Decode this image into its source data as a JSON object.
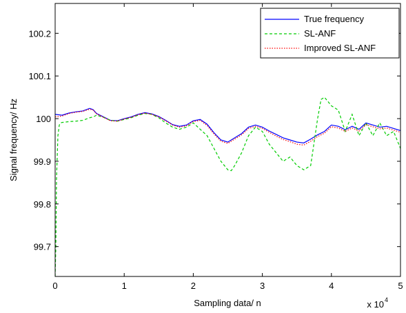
{
  "chart_data": {
    "type": "line",
    "xlabel": "Sampling data/ n",
    "ylabel": "Signal frequency/ Hz",
    "x_exponent_label": "x 10",
    "x_exponent_power": "4",
    "xlim": [
      0,
      5
    ],
    "ylim": [
      99.63,
      100.27
    ],
    "x_ticks": [
      0,
      1,
      2,
      3,
      4,
      5
    ],
    "x_tick_labels": [
      "0",
      "1",
      "2",
      "3",
      "4",
      "5"
    ],
    "y_ticks": [
      99.7,
      99.8,
      99.9,
      100.0,
      100.1,
      100.2
    ],
    "y_tick_labels": [
      "99.7",
      "99.8",
      "99.9",
      "100",
      "100.1",
      "100.2"
    ],
    "grid": false,
    "legend_position": "top-right",
    "series": [
      {
        "name": "True frequency",
        "color": "#0000ff",
        "style": "solid",
        "x": [
          0,
          0.1,
          0.2,
          0.3,
          0.4,
          0.5,
          0.55,
          0.6,
          0.7,
          0.8,
          0.9,
          1.0,
          1.1,
          1.2,
          1.3,
          1.4,
          1.5,
          1.6,
          1.7,
          1.8,
          1.9,
          2.0,
          2.1,
          2.2,
          2.3,
          2.4,
          2.5,
          2.6,
          2.7,
          2.8,
          2.9,
          3.0,
          3.1,
          3.2,
          3.3,
          3.4,
          3.5,
          3.6,
          3.7,
          3.8,
          3.9,
          4.0,
          4.1,
          4.2,
          4.3,
          4.4,
          4.5,
          4.6,
          4.7,
          4.8,
          4.9,
          5.0
        ],
        "values": [
          100.01,
          100.008,
          100.013,
          100.016,
          100.018,
          100.024,
          100.021,
          100.012,
          100.004,
          99.996,
          99.995,
          100.0,
          100.004,
          100.01,
          100.014,
          100.011,
          100.005,
          99.996,
          99.986,
          99.982,
          99.985,
          99.995,
          99.998,
          99.987,
          99.967,
          99.95,
          99.945,
          99.955,
          99.965,
          99.98,
          99.985,
          99.98,
          99.971,
          99.963,
          99.955,
          99.95,
          99.945,
          99.943,
          99.952,
          99.962,
          99.97,
          99.985,
          99.982,
          99.974,
          99.982,
          99.975,
          99.99,
          99.985,
          99.98,
          99.982,
          99.977,
          99.972
        ]
      },
      {
        "name": "SL-ANF",
        "color": "#00cc00",
        "style": "dashed",
        "x": [
          0,
          0.01,
          0.02,
          0.04,
          0.06,
          0.08,
          0.1,
          0.2,
          0.3,
          0.4,
          0.5,
          0.55,
          0.6,
          0.7,
          0.8,
          0.9,
          1.0,
          1.1,
          1.2,
          1.3,
          1.4,
          1.5,
          1.6,
          1.7,
          1.8,
          1.9,
          2.0,
          2.1,
          2.2,
          2.3,
          2.4,
          2.5,
          2.55,
          2.6,
          2.7,
          2.8,
          2.9,
          3.0,
          3.1,
          3.2,
          3.3,
          3.4,
          3.5,
          3.6,
          3.7,
          3.8,
          3.85,
          3.9,
          4.0,
          4.1,
          4.2,
          4.3,
          4.4,
          4.5,
          4.6,
          4.7,
          4.8,
          4.9,
          5.0
        ],
        "values": [
          99.63,
          99.7,
          99.86,
          99.96,
          99.985,
          99.99,
          99.991,
          99.993,
          99.994,
          99.996,
          100.002,
          100.004,
          100.008,
          100.003,
          99.996,
          99.994,
          99.998,
          100.002,
          100.008,
          100.012,
          100.01,
          100.002,
          99.99,
          99.98,
          99.975,
          99.98,
          99.99,
          99.975,
          99.96,
          99.93,
          99.9,
          99.88,
          99.878,
          99.89,
          99.92,
          99.96,
          99.98,
          99.97,
          99.94,
          99.92,
          99.9,
          99.91,
          99.89,
          99.88,
          99.89,
          100.0,
          100.045,
          100.05,
          100.03,
          100.02,
          99.97,
          100.01,
          99.96,
          99.99,
          99.96,
          99.99,
          99.96,
          99.97,
          99.93
        ]
      },
      {
        "name": "Improved SL-ANF",
        "color": "#ff0000",
        "style": "dotted",
        "x": [
          0,
          0.1,
          0.2,
          0.3,
          0.4,
          0.5,
          0.55,
          0.6,
          0.7,
          0.8,
          0.9,
          1.0,
          1.1,
          1.2,
          1.3,
          1.4,
          1.5,
          1.6,
          1.7,
          1.8,
          1.9,
          2.0,
          2.1,
          2.2,
          2.3,
          2.4,
          2.5,
          2.6,
          2.7,
          2.8,
          2.9,
          3.0,
          3.1,
          3.2,
          3.3,
          3.4,
          3.5,
          3.6,
          3.7,
          3.8,
          3.9,
          4.0,
          4.1,
          4.2,
          4.3,
          4.4,
          4.5,
          4.6,
          4.7,
          4.8,
          4.9,
          5.0
        ],
        "values": [
          100.004,
          100.006,
          100.012,
          100.015,
          100.017,
          100.022,
          100.02,
          100.011,
          100.003,
          99.995,
          99.994,
          99.999,
          100.003,
          100.009,
          100.013,
          100.01,
          100.004,
          99.995,
          99.985,
          99.98,
          99.983,
          99.993,
          99.996,
          99.984,
          99.964,
          99.947,
          99.942,
          99.952,
          99.962,
          99.977,
          99.982,
          99.977,
          99.968,
          99.959,
          99.951,
          99.946,
          99.94,
          99.938,
          99.947,
          99.958,
          99.966,
          99.981,
          99.978,
          99.97,
          99.978,
          99.971,
          99.986,
          99.981,
          99.976,
          99.978,
          99.973,
          99.968
        ]
      }
    ]
  }
}
